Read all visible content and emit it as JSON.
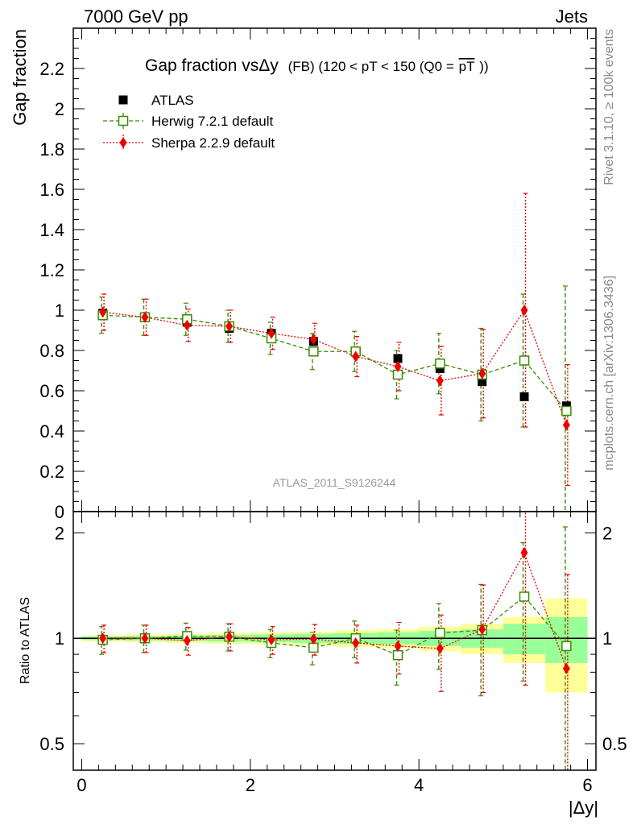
{
  "header": {
    "left": "7000 GeV pp",
    "right": "Jets"
  },
  "side_labels": {
    "rivet": "Rivet 3.1.10, ≥ 100k events",
    "mcplots": "mcplots.cern.ch [arXiv:1306.3436]"
  },
  "chart_data": {
    "type": "scatter",
    "title": {
      "main": "Gap fraction vsΔy",
      "sub": "(FB) (120 < pT < 150 (Q0 =",
      "pt": "pT",
      "close": "))"
    },
    "watermark": "ATLAS_2011_S9126244",
    "ylabel": "Gap fraction",
    "ratio_ylabel": "Ratio to ATLAS",
    "xlabel": "|Δy|",
    "xlim": [
      -0.1,
      6.1
    ],
    "ylim": [
      0,
      2.4
    ],
    "ratio_ylim": [
      0.42,
      2.3
    ],
    "ratio_log": true,
    "x_ticks": [
      0,
      2,
      4,
      6
    ],
    "y_ticks": [
      0,
      0.2,
      0.4,
      0.6,
      0.8,
      1,
      1.2,
      1.4,
      1.6,
      1.8,
      2,
      2.2
    ],
    "ratio_ticks": [
      0.5,
      1,
      2
    ],
    "ratio_tick_labels": [
      "0.5",
      "1",
      "2"
    ],
    "x": [
      0.25,
      0.75,
      1.25,
      1.75,
      2.25,
      2.75,
      3.25,
      3.75,
      4.25,
      4.75,
      5.25,
      5.75
    ],
    "series": [
      {
        "name": "ATLAS",
        "color": "#000000",
        "marker": "square-filled",
        "values": [
          0.985,
          0.965,
          0.94,
          0.91,
          0.885,
          0.845,
          0.795,
          0.76,
          0.71,
          0.645,
          0.57,
          0.525
        ],
        "band_stat": [
          0.012,
          0.015,
          0.018,
          0.022,
          0.025,
          0.03,
          0.035,
          0.04,
          0.05,
          0.06,
          0.1,
          0.15
        ],
        "band_total": [
          0.02,
          0.025,
          0.03,
          0.035,
          0.04,
          0.045,
          0.055,
          0.06,
          0.08,
          0.1,
          0.15,
          0.3
        ]
      },
      {
        "name": "Herwig 7.2.1 default",
        "color": "#3a8a00",
        "marker": "square-open",
        "line": "dashed",
        "values": [
          0.975,
          0.965,
          0.955,
          0.92,
          0.86,
          0.795,
          0.795,
          0.68,
          0.735,
          0.68,
          0.75,
          0.5
        ],
        "errors": [
          0.09,
          0.09,
          0.08,
          0.08,
          0.08,
          0.09,
          0.1,
          0.12,
          0.15,
          0.23,
          0.33,
          0.62
        ],
        "ratio": [
          0.99,
          1.0,
          1.015,
          1.01,
          0.97,
          0.94,
          1.0,
          0.895,
          1.035,
          1.055,
          1.315,
          0.95
        ],
        "ratio_errors": [
          0.09,
          0.09,
          0.09,
          0.09,
          0.09,
          0.1,
          0.12,
          0.16,
          0.22,
          0.37,
          0.56,
          1.13
        ]
      },
      {
        "name": "Sherpa 2.2.9 default",
        "color": "#ee0000",
        "marker": "diamond-filled",
        "line": "dotted",
        "values": [
          0.99,
          0.965,
          0.925,
          0.92,
          0.885,
          0.855,
          0.77,
          0.72,
          0.65,
          0.685,
          1.0,
          0.43
        ],
        "errors": [
          0.09,
          0.09,
          0.08,
          0.08,
          0.08,
          0.08,
          0.1,
          0.12,
          0.17,
          0.22,
          0.58,
          0.3
        ],
        "ratio": [
          1.0,
          1.0,
          0.985,
          1.01,
          0.99,
          0.995,
          0.97,
          0.95,
          0.935,
          1.06,
          1.755,
          0.82
        ],
        "ratio_errors": [
          0.09,
          0.09,
          0.09,
          0.09,
          0.09,
          0.1,
          0.12,
          0.16,
          0.23,
          0.36,
          1.02,
          0.7
        ]
      }
    ]
  }
}
